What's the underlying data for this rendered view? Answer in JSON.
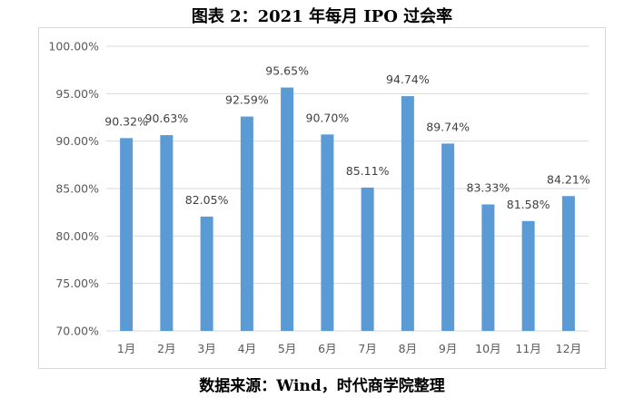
{
  "title": "图表 2：2021 年每月 IPO 过会率",
  "source": "数据来源：Wind，时代商学院整理",
  "chart_data": {
    "type": "bar",
    "categories": [
      "1月",
      "2月",
      "3月",
      "4月",
      "5月",
      "6月",
      "7月",
      "8月",
      "9月",
      "10月",
      "11月",
      "12月"
    ],
    "values": [
      90.32,
      90.63,
      82.05,
      92.59,
      95.65,
      90.7,
      85.11,
      94.74,
      89.74,
      83.33,
      81.58,
      84.21
    ],
    "data_labels": [
      "90.32%",
      "90.63%",
      "82.05%",
      "92.59%",
      "95.65%",
      "90.70%",
      "85.11%",
      "94.74%",
      "89.74%",
      "83.33%",
      "81.58%",
      "84.21%"
    ],
    "ylim": [
      70,
      100
    ],
    "yticks": [
      70,
      75,
      80,
      85,
      90,
      95,
      100
    ],
    "ytick_labels": [
      "70.00%",
      "75.00%",
      "80.00%",
      "85.00%",
      "90.00%",
      "95.00%",
      "100.00%"
    ],
    "bar_color": "#5b9bd5",
    "grid": true
  }
}
